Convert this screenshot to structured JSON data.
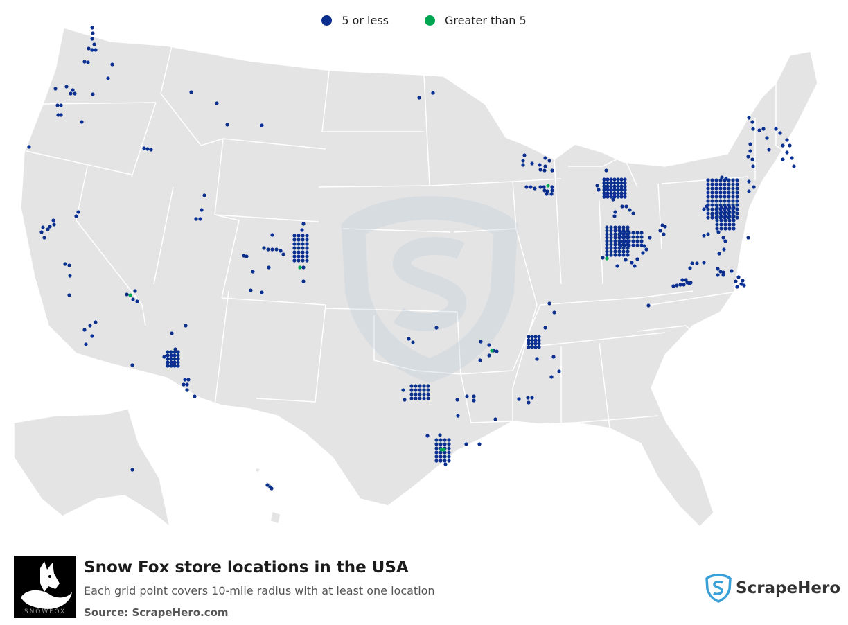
{
  "legend": {
    "items": [
      {
        "label": "5 or less",
        "color": "#0a2f8f"
      },
      {
        "label": "Greater than 5",
        "color": "#00a651"
      }
    ]
  },
  "footer": {
    "title": "Snow Fox store locations in the USA",
    "subtitle": "Each grid point covers 10-mile radius with at least one location",
    "source": "Source: ScrapeHero.com",
    "brand_logo_text": "SNOWFOX",
    "scrapehero_text": "ScrapeHero"
  },
  "colors": {
    "land": "#e4e4e4",
    "state_border": "#ffffff",
    "low": "#0a2f8f",
    "high": "#00a651"
  }
}
